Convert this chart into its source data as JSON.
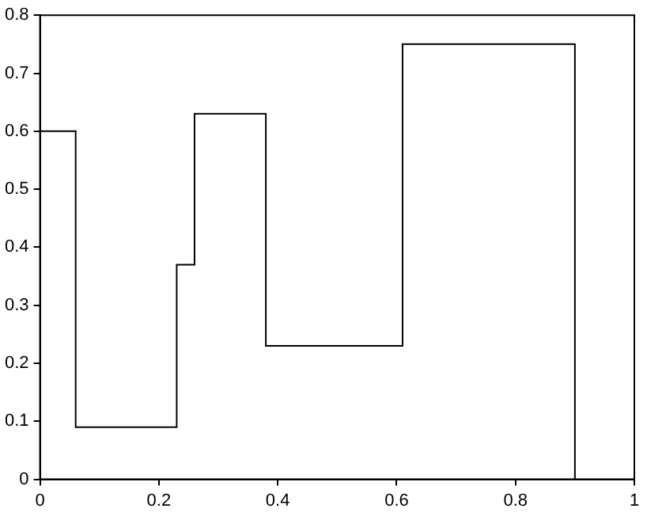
{
  "chart_data": {
    "type": "step",
    "x": [
      0,
      0.06,
      0.23,
      0.26,
      0.38,
      0.61,
      0.9
    ],
    "values": [
      0.6,
      0.09,
      0.37,
      0.63,
      0.23,
      0.75,
      0
    ],
    "color": "#000000",
    "xlim": [
      0,
      1
    ],
    "xticks": [
      0,
      0.2,
      0.4,
      0.6,
      0.8,
      1
    ],
    "ylim": [
      0,
      0.8
    ],
    "yticks": [
      0,
      0.1,
      0.2,
      0.3,
      0.4,
      0.5,
      0.6,
      0.7,
      0.8
    ],
    "grid": false,
    "legend": false,
    "marker": "none",
    "line_style": "solid"
  }
}
